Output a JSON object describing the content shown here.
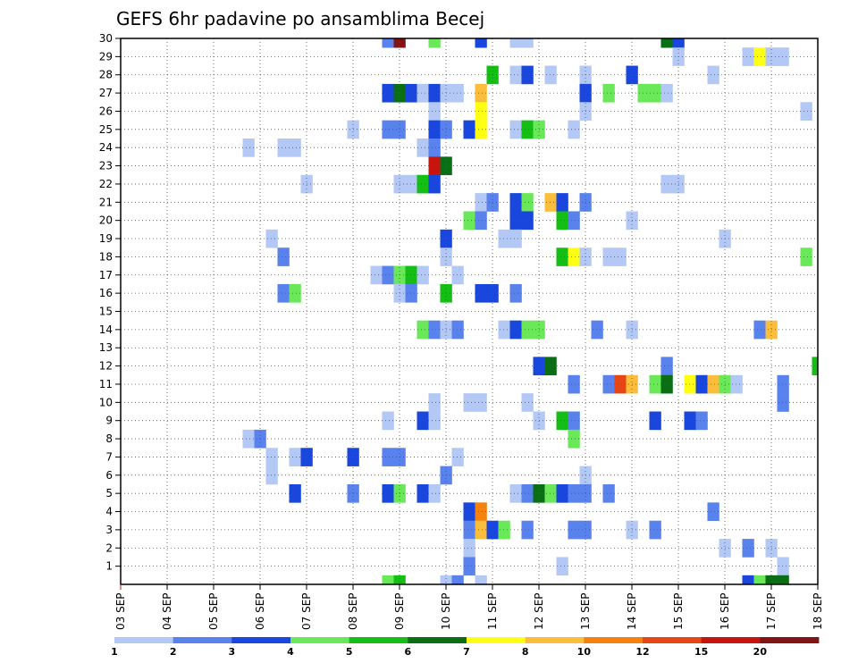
{
  "chart_data": {
    "type": "heatmap",
    "title": "GEFS 6hr padavine po ansamblima Becej",
    "xlabel": "",
    "ylabel": "",
    "x_tick_labels": [
      "03 SEP",
      "04 SEP",
      "05 SEP",
      "06 SEP",
      "07 SEP",
      "08 SEP",
      "09 SEP",
      "10 SEP",
      "11 SEP",
      "12 SEP",
      "13 SEP",
      "14 SEP",
      "15 SEP",
      "16 SEP",
      "17 SEP",
      "18 SEP"
    ],
    "y_tick_labels": [
      "1",
      "2",
      "3",
      "4",
      "5",
      "6",
      "7",
      "8",
      "9",
      "10",
      "11",
      "12",
      "13",
      "14",
      "15",
      "16",
      "17",
      "18",
      "19",
      "20",
      "21",
      "22",
      "23",
      "24",
      "25",
      "26",
      "27",
      "28",
      "29",
      "30"
    ],
    "x_unit": "6-hour step (0 = 03 SEP 00 UTC, 4 steps per day)",
    "ylim": [
      0,
      30
    ],
    "xlim": [
      0,
      60
    ],
    "grid": "dotted",
    "legend": {
      "placement": "bottom",
      "labels": [
        "1",
        "2",
        "3",
        "4",
        "5",
        "6",
        "7",
        "8",
        "10",
        "12",
        "15",
        "20"
      ],
      "colors": [
        "#b4c8f5",
        "#5a82ec",
        "#1946dc",
        "#6ae85a",
        "#14be14",
        "#0a6e14",
        "#ffff14",
        "#fabe3c",
        "#f5820f",
        "#e64614",
        "#c8140f",
        "#821414"
      ]
    },
    "levels": {
      "1": "#b4c8f5",
      "2": "#5a82ec",
      "3": "#1946dc",
      "4": "#6ae85a",
      "5": "#14be14",
      "6": "#0a6e14",
      "7": "#ffff14",
      "8": "#fabe3c",
      "10": "#f5820f",
      "12": "#e64614",
      "15": "#c8140f",
      "20": "#821414"
    },
    "cells_format": "[x_step, member, level]",
    "cells": [
      [
        23,
        30,
        2
      ],
      [
        24,
        30,
        20
      ],
      [
        27,
        30,
        4
      ],
      [
        31,
        30,
        3
      ],
      [
        34,
        30,
        1
      ],
      [
        35,
        30,
        1
      ],
      [
        47,
        30,
        6
      ],
      [
        48,
        30,
        3
      ],
      [
        48,
        29,
        1
      ],
      [
        54,
        29,
        1
      ],
      [
        55,
        29,
        7
      ],
      [
        56,
        29,
        1
      ],
      [
        57,
        29,
        1
      ],
      [
        32,
        28,
        5
      ],
      [
        34,
        28,
        1
      ],
      [
        35,
        28,
        3
      ],
      [
        37,
        28,
        1
      ],
      [
        40,
        28,
        1
      ],
      [
        44,
        28,
        3
      ],
      [
        51,
        28,
        1
      ],
      [
        23,
        27,
        3
      ],
      [
        24,
        27,
        6
      ],
      [
        25,
        27,
        3
      ],
      [
        26,
        27,
        1
      ],
      [
        27,
        27,
        3
      ],
      [
        28,
        27,
        1
      ],
      [
        29,
        27,
        1
      ],
      [
        31,
        27,
        8
      ],
      [
        40,
        27,
        3
      ],
      [
        42,
        27,
        4
      ],
      [
        45,
        27,
        4
      ],
      [
        46,
        27,
        4
      ],
      [
        47,
        27,
        1
      ],
      [
        27,
        26,
        1
      ],
      [
        31,
        26,
        7
      ],
      [
        40,
        26,
        1
      ],
      [
        59,
        26,
        1
      ],
      [
        20,
        25,
        1
      ],
      [
        23,
        25,
        2
      ],
      [
        24,
        25,
        2
      ],
      [
        27,
        25,
        3
      ],
      [
        28,
        25,
        2
      ],
      [
        30,
        25,
        3
      ],
      [
        31,
        25,
        7
      ],
      [
        34,
        25,
        1
      ],
      [
        35,
        25,
        5
      ],
      [
        36,
        25,
        4
      ],
      [
        39,
        25,
        1
      ],
      [
        11,
        24,
        1
      ],
      [
        14,
        24,
        1
      ],
      [
        15,
        24,
        1
      ],
      [
        26,
        24,
        1
      ],
      [
        27,
        24,
        2
      ],
      [
        27,
        23,
        15
      ],
      [
        28,
        23,
        6
      ],
      [
        16,
        22,
        1
      ],
      [
        24,
        22,
        1
      ],
      [
        25,
        22,
        1
      ],
      [
        26,
        22,
        5
      ],
      [
        27,
        22,
        3
      ],
      [
        47,
        22,
        1
      ],
      [
        48,
        22,
        1
      ],
      [
        31,
        21,
        1
      ],
      [
        32,
        21,
        2
      ],
      [
        34,
        21,
        3
      ],
      [
        35,
        21,
        4
      ],
      [
        37,
        21,
        8
      ],
      [
        38,
        21,
        3
      ],
      [
        40,
        21,
        2
      ],
      [
        30,
        20,
        4
      ],
      [
        31,
        20,
        2
      ],
      [
        34,
        20,
        3
      ],
      [
        35,
        20,
        3
      ],
      [
        38,
        20,
        5
      ],
      [
        39,
        20,
        2
      ],
      [
        44,
        20,
        1
      ],
      [
        13,
        19,
        1
      ],
      [
        28,
        19,
        3
      ],
      [
        33,
        19,
        1
      ],
      [
        34,
        19,
        1
      ],
      [
        52,
        19,
        1
      ],
      [
        14,
        18,
        2
      ],
      [
        28,
        18,
        1
      ],
      [
        38,
        18,
        5
      ],
      [
        39,
        18,
        7
      ],
      [
        40,
        18,
        1
      ],
      [
        42,
        18,
        1
      ],
      [
        43,
        18,
        1
      ],
      [
        59,
        18,
        4
      ],
      [
        22,
        17,
        1
      ],
      [
        23,
        17,
        2
      ],
      [
        24,
        17,
        4
      ],
      [
        25,
        17,
        5
      ],
      [
        26,
        17,
        1
      ],
      [
        29,
        17,
        1
      ],
      [
        14,
        16,
        2
      ],
      [
        15,
        16,
        4
      ],
      [
        24,
        16,
        1
      ],
      [
        25,
        16,
        2
      ],
      [
        28,
        16,
        5
      ],
      [
        31,
        16,
        3
      ],
      [
        32,
        16,
        3
      ],
      [
        34,
        16,
        2
      ],
      [
        26,
        14,
        4
      ],
      [
        27,
        14,
        2
      ],
      [
        28,
        14,
        1
      ],
      [
        29,
        14,
        2
      ],
      [
        33,
        14,
        1
      ],
      [
        34,
        14,
        3
      ],
      [
        35,
        14,
        4
      ],
      [
        36,
        14,
        4
      ],
      [
        41,
        14,
        2
      ],
      [
        44,
        14,
        1
      ],
      [
        55,
        14,
        2
      ],
      [
        56,
        14,
        8
      ],
      [
        36,
        12,
        3
      ],
      [
        37,
        12,
        6
      ],
      [
        47,
        12,
        2
      ],
      [
        60,
        12,
        5
      ],
      [
        39,
        11,
        2
      ],
      [
        42,
        11,
        2
      ],
      [
        43,
        11,
        12
      ],
      [
        44,
        11,
        8
      ],
      [
        46,
        11,
        4
      ],
      [
        47,
        11,
        6
      ],
      [
        49,
        11,
        7
      ],
      [
        50,
        11,
        3
      ],
      [
        51,
        11,
        8
      ],
      [
        52,
        11,
        4
      ],
      [
        53,
        11,
        1
      ],
      [
        57,
        11,
        2
      ],
      [
        27,
        10,
        1
      ],
      [
        30,
        10,
        1
      ],
      [
        31,
        10,
        1
      ],
      [
        35,
        10,
        1
      ],
      [
        57,
        10,
        2
      ],
      [
        23,
        9,
        1
      ],
      [
        26,
        9,
        3
      ],
      [
        27,
        9,
        1
      ],
      [
        36,
        9,
        1
      ],
      [
        38,
        9,
        5
      ],
      [
        39,
        9,
        2
      ],
      [
        46,
        9,
        3
      ],
      [
        49,
        9,
        3
      ],
      [
        50,
        9,
        2
      ],
      [
        11,
        8,
        1
      ],
      [
        12,
        8,
        2
      ],
      [
        39,
        8,
        4
      ],
      [
        13,
        7,
        1
      ],
      [
        15,
        7,
        1
      ],
      [
        16,
        7,
        3
      ],
      [
        20,
        7,
        3
      ],
      [
        23,
        7,
        2
      ],
      [
        24,
        7,
        2
      ],
      [
        29,
        7,
        1
      ],
      [
        13,
        6,
        1
      ],
      [
        28,
        6,
        2
      ],
      [
        40,
        6,
        1
      ],
      [
        15,
        5,
        3
      ],
      [
        20,
        5,
        2
      ],
      [
        23,
        5,
        3
      ],
      [
        24,
        5,
        4
      ],
      [
        26,
        5,
        3
      ],
      [
        27,
        5,
        1
      ],
      [
        34,
        5,
        1
      ],
      [
        35,
        5,
        2
      ],
      [
        36,
        5,
        6
      ],
      [
        37,
        5,
        4
      ],
      [
        38,
        5,
        3
      ],
      [
        39,
        5,
        2
      ],
      [
        40,
        5,
        2
      ],
      [
        42,
        5,
        2
      ],
      [
        30,
        4,
        3
      ],
      [
        31,
        4,
        10
      ],
      [
        51,
        4,
        2
      ],
      [
        30,
        3,
        2
      ],
      [
        31,
        3,
        8
      ],
      [
        32,
        3,
        3
      ],
      [
        33,
        3,
        4
      ],
      [
        35,
        3,
        2
      ],
      [
        39,
        3,
        2
      ],
      [
        40,
        3,
        2
      ],
      [
        44,
        3,
        1
      ],
      [
        46,
        3,
        2
      ],
      [
        30,
        2,
        1
      ],
      [
        52,
        2,
        1
      ],
      [
        54,
        2,
        2
      ],
      [
        56,
        2,
        1
      ],
      [
        30,
        1,
        2
      ],
      [
        38,
        1,
        1
      ],
      [
        57,
        1,
        1
      ],
      [
        23,
        0,
        4
      ],
      [
        24,
        0,
        5
      ],
      [
        28,
        0,
        1
      ],
      [
        29,
        0,
        2
      ],
      [
        31,
        0,
        1
      ],
      [
        54,
        0,
        3
      ],
      [
        55,
        0,
        4
      ],
      [
        56,
        0,
        6
      ],
      [
        57,
        0,
        6
      ]
    ]
  }
}
